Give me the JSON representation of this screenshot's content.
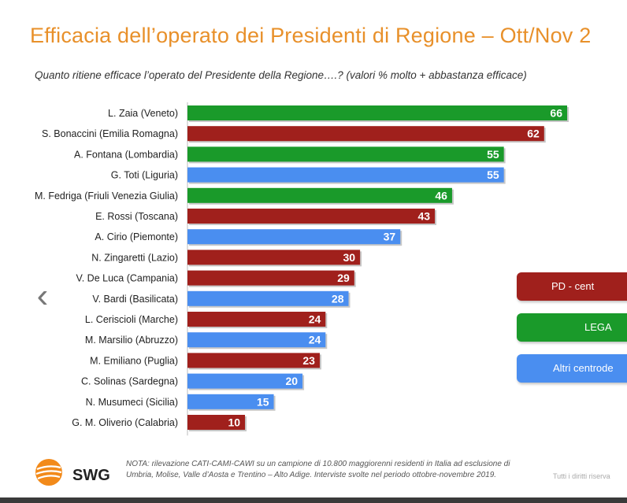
{
  "header": {
    "title": "Efficacia dell’operato dei Presidenti di Regione – Ott/Nov 2",
    "subtitle": "Quanto ritiene efficace l’operato del Presidente della Regione….? (valori % molto + abbastanza efficace)"
  },
  "colors": {
    "pd": "#a0201c",
    "lega": "#1a9a2a",
    "centrodestra": "#4a8ef0"
  },
  "chart_data": {
    "type": "bar",
    "orientation": "horizontal",
    "categories": [
      "L. Zaia (Veneto)",
      "S. Bonaccini (Emilia Romagna)",
      "A. Fontana (Lombardia)",
      "G. Toti (Liguria)",
      "M. Fedriga (Friuli Venezia Giulia)",
      "E. Rossi (Toscana)",
      "A. Cirio (Piemonte)",
      "N. Zingaretti (Lazio)",
      "V. De Luca (Campania)",
      "V. Bardi (Basilicata)",
      "L. Ceriscioli (Marche)",
      "M. Marsilio (Abruzzo)",
      "M. Emiliano (Puglia)",
      "C. Solinas (Sardegna)",
      "N. Musumeci (Sicilia)",
      "G. M. Oliverio (Calabria)"
    ],
    "values": [
      66,
      62,
      55,
      55,
      46,
      43,
      37,
      30,
      29,
      28,
      24,
      24,
      23,
      20,
      15,
      10
    ],
    "groups": [
      "lega",
      "pd",
      "lega",
      "centrodestra",
      "lega",
      "pd",
      "centrodestra",
      "pd",
      "pd",
      "centrodestra",
      "pd",
      "centrodestra",
      "pd",
      "centrodestra",
      "centrodestra",
      "pd"
    ],
    "legend": [
      {
        "key": "pd",
        "label": "PD - cent"
      },
      {
        "key": "lega",
        "label": "LEGA"
      },
      {
        "key": "centrodestra",
        "label": "Altri centrode"
      }
    ],
    "legend_position": "right",
    "xlim": [
      0,
      70
    ],
    "grid": false
  },
  "footer": {
    "brand": "SWG",
    "note": "NOTA: rilevazione CATI-CAMI-CAWI su un campione di 10.800 maggiorenni residenti in Italia ad esclusione di Umbria, Molise, Valle d’Aosta e Trentino – Alto Adige. Interviste svolte nel periodo ottobre-novembre 2019.",
    "rights": "Tutti i diritti riserva"
  },
  "nav": {
    "prev_arrow": "‹"
  }
}
